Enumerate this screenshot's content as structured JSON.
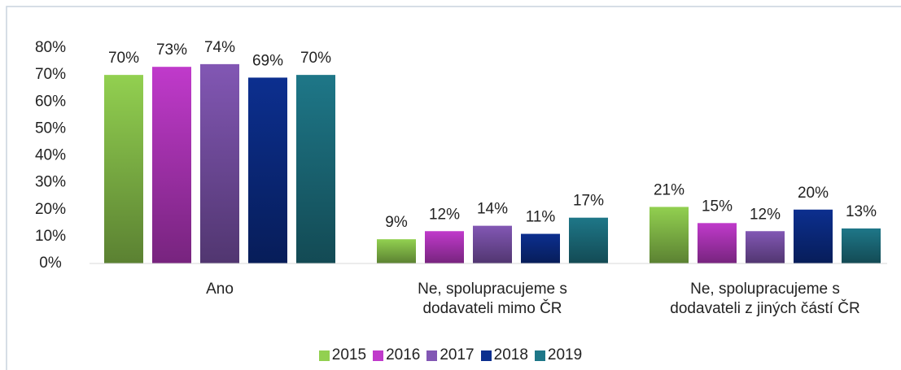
{
  "chart_data": {
    "type": "bar",
    "categories": [
      "Ano",
      "Ne, spolupracujeme s\ndodavateli mimo ČR",
      "Ne, spolupracujeme s\ndodavateli z jiných částí ČR"
    ],
    "series": [
      {
        "name": "2015",
        "color": "#92d050",
        "values": [
          70,
          9,
          21
        ],
        "value_labels": [
          "70%",
          "9%",
          "21%"
        ]
      },
      {
        "name": "2016",
        "color": "#c03acb",
        "values": [
          73,
          12,
          15
        ],
        "value_labels": [
          "73%",
          "12%",
          "15%"
        ]
      },
      {
        "name": "2017",
        "color": "#8257b4",
        "values": [
          74,
          14,
          12
        ],
        "value_labels": [
          "74%",
          "14%",
          "12%"
        ]
      },
      {
        "name": "2018",
        "color": "#0c2f8f",
        "values": [
          69,
          11,
          20
        ],
        "value_labels": [
          "69%",
          "11%",
          "20%"
        ]
      },
      {
        "name": "2019",
        "color": "#1e7788",
        "values": [
          70,
          17,
          13
        ],
        "value_labels": [
          "70%",
          "17%",
          "13%"
        ]
      }
    ],
    "ylim": [
      0,
      80
    ],
    "yticks": [
      {
        "value": 0,
        "label": "0%"
      },
      {
        "value": 10,
        "label": "10%"
      },
      {
        "value": 20,
        "label": "20%"
      },
      {
        "value": 30,
        "label": "30%"
      },
      {
        "value": 40,
        "label": "40%"
      },
      {
        "value": 50,
        "label": "50%"
      },
      {
        "value": 60,
        "label": "60%"
      },
      {
        "value": 70,
        "label": "70%"
      },
      {
        "value": 80,
        "label": "80%"
      }
    ],
    "legend": "bottom"
  }
}
